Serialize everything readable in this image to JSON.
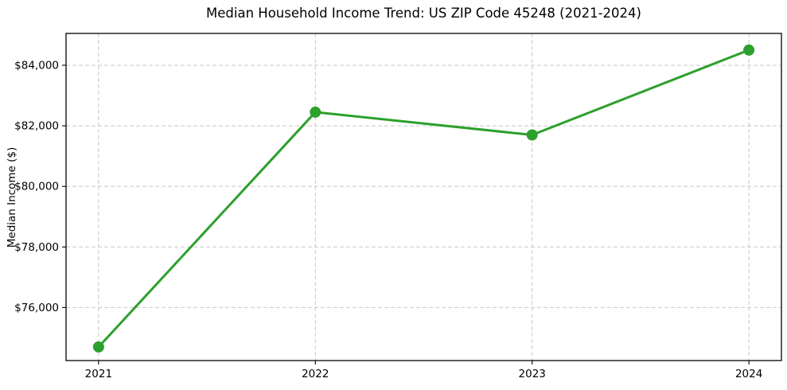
{
  "chart_data": {
    "type": "line",
    "title": "Median Household Income Trend: US ZIP Code 45248 (2021-2024)",
    "xlabel": "",
    "ylabel": "Median Income ($)",
    "x": [
      2021,
      2022,
      2023,
      2024
    ],
    "series": [
      {
        "name": "Median Household Income",
        "values": [
          74700,
          82450,
          81700,
          84500
        ]
      }
    ],
    "xticks": [
      2021,
      2022,
      2023,
      2024
    ],
    "xtick_labels": [
      "2021",
      "2022",
      "2023",
      "2024"
    ],
    "yticks": [
      76000,
      78000,
      80000,
      82000,
      84000
    ],
    "ytick_labels": [
      "$76,000",
      "$78,000",
      "$80,000",
      "$82,000",
      "$84,000"
    ],
    "xlim": [
      2020.85,
      2024.15
    ],
    "ylim": [
      74250,
      85050
    ],
    "grid": true,
    "grid_style": "dashed",
    "legend_position": "none",
    "colors": {
      "line": "#2ca02c",
      "marker": "#2ca02c",
      "grid": "#b0b0b0",
      "spine": "#000000",
      "text": "#000000",
      "background": "#ffffff"
    }
  }
}
